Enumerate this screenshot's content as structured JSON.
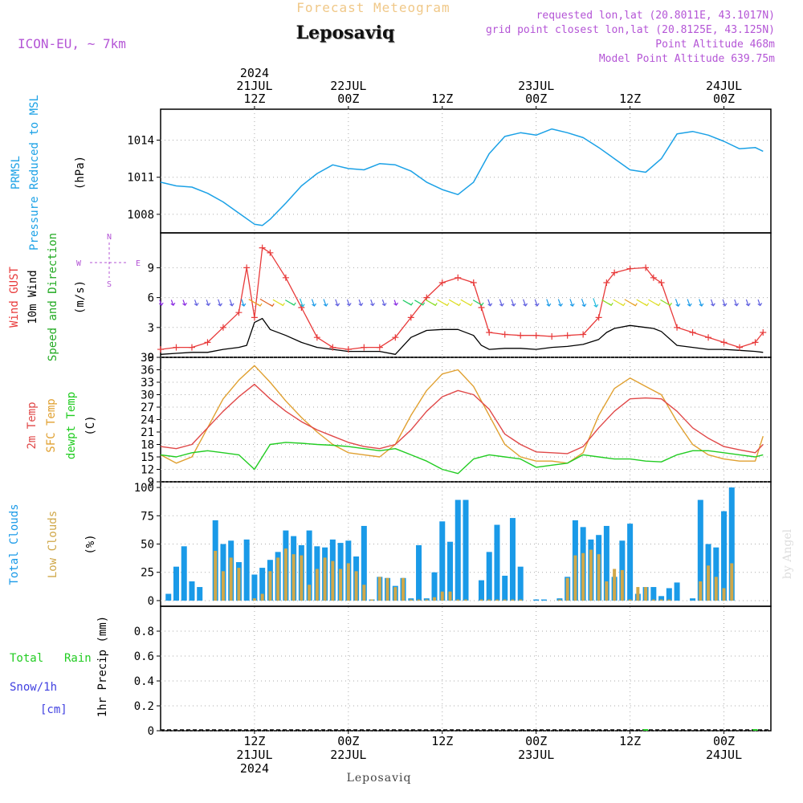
{
  "header": {
    "top_title": "Forecast Meteogram",
    "location": "Leposaviq",
    "model": "ICON-EU, ~ 7km",
    "requested": "requested lon,lat (20.8011E, 43.1017N)",
    "gridpoint": "grid point closest lon,lat (20.8125E, 43.125N)",
    "point_alt": "Point Altitude 468m",
    "model_alt": "Model Point Altitude 639.75m",
    "footer": "Leposaviq",
    "watermark": "by Angel"
  },
  "time_axis": {
    "start_hour": 0,
    "end_hour": 78,
    "ticks": [
      {
        "h": 12,
        "top": [
          "2024",
          "21JUL",
          "12Z"
        ],
        "bottom": [
          "12Z",
          "21JUL",
          "2024"
        ]
      },
      {
        "h": 24,
        "top": [
          "22JUL",
          "00Z"
        ],
        "bottom": [
          "00Z",
          "22JUL"
        ]
      },
      {
        "h": 36,
        "top": [
          "12Z"
        ],
        "bottom": [
          "12Z"
        ]
      },
      {
        "h": 48,
        "top": [
          "23JUL",
          "00Z"
        ],
        "bottom": [
          "00Z",
          "23JUL"
        ]
      },
      {
        "h": 60,
        "top": [
          "12Z"
        ],
        "bottom": [
          "12Z"
        ]
      },
      {
        "h": 72,
        "top": [
          "24JUL",
          "00Z"
        ],
        "bottom": [
          "00Z",
          "24JUL"
        ]
      }
    ]
  },
  "colors": {
    "pressure": "#1ba1e6",
    "gust": "#e83a3a",
    "wind": "#000000",
    "temp": "#e04848",
    "sfc": "#e0a030",
    "dew": "#22cc22",
    "total_clouds": "#1a9ae8",
    "low_clouds": "#d0a84a",
    "rain": "#22cc22",
    "snow": "#4040e0",
    "purple": "#b455d6",
    "title_orange": "#f0c888"
  },
  "panels": {
    "pressure": {
      "labels": [
        "PRMSL",
        "Pressure Reduced to MSL"
      ],
      "unit": "(hPa)"
    },
    "wind": {
      "labels": [
        "Wind GUST",
        "10m Wind",
        "Speed and Direction"
      ],
      "unit": "(m/s)",
      "compass": {
        "n": "N",
        "s": "S",
        "e": "E",
        "w": "W"
      }
    },
    "temp": {
      "labels": [
        "2m Temp",
        "SFC Temp",
        "dewpt Temp"
      ],
      "unit": "(C)"
    },
    "clouds": {
      "labels": [
        "Total Clouds",
        "Low Clouds"
      ],
      "unit": "(%)"
    },
    "precip": {
      "labels": [
        "Total",
        "Rain",
        "Snow/1h",
        "[cm]"
      ],
      "axis_label": "1hr Precip (mm)"
    }
  },
  "chart_data": [
    {
      "type": "line",
      "name": "PRMSL",
      "ylim": [
        1006.5,
        1016.5
      ],
      "yticks": [
        1008,
        1011,
        1014
      ],
      "x": [
        0,
        2,
        4,
        6,
        8,
        10,
        12,
        13,
        14,
        16,
        18,
        20,
        22,
        24,
        26,
        28,
        30,
        32,
        34,
        36,
        38,
        40,
        42,
        44,
        46,
        48,
        50,
        52,
        54,
        56,
        58,
        60,
        62,
        64,
        66,
        68,
        70,
        72,
        74,
        76,
        77
      ],
      "y": [
        1010.6,
        1010.3,
        1010.2,
        1009.7,
        1009.0,
        1008.1,
        1007.2,
        1007.1,
        1007.6,
        1008.9,
        1010.3,
        1011.3,
        1012.0,
        1011.7,
        1011.6,
        1012.1,
        1012.0,
        1011.5,
        1010.6,
        1010.0,
        1009.6,
        1010.6,
        1012.9,
        1014.3,
        1014.6,
        1014.4,
        1014.9,
        1014.6,
        1014.2,
        1013.4,
        1012.5,
        1011.6,
        1011.4,
        1012.5,
        1014.5,
        1014.7,
        1014.4,
        1013.9,
        1013.3,
        1013.4,
        1013.1
      ]
    },
    {
      "type": "line",
      "name": "wind",
      "ylim": [
        0,
        12.5
      ],
      "yticks": [
        0,
        3,
        6,
        9
      ],
      "x": [
        0,
        2,
        4,
        6,
        8,
        10,
        11,
        12,
        13,
        14,
        16,
        18,
        20,
        22,
        24,
        26,
        28,
        30,
        32,
        34,
        36,
        38,
        40,
        41,
        42,
        44,
        46,
        48,
        50,
        52,
        54,
        56,
        57,
        58,
        60,
        62,
        63,
        64,
        66,
        68,
        70,
        72,
        74,
        76,
        77
      ],
      "gust": [
        0.8,
        1.0,
        1.0,
        1.5,
        3.0,
        4.5,
        9.0,
        4.0,
        11.0,
        10.5,
        8.0,
        5.0,
        2.0,
        1.0,
        0.8,
        1.0,
        1.0,
        2.0,
        4.0,
        6.0,
        7.5,
        8.0,
        7.5,
        5.0,
        2.5,
        2.3,
        2.2,
        2.2,
        2.1,
        2.2,
        2.3,
        4.0,
        7.5,
        8.5,
        8.9,
        9.0,
        8.0,
        7.5,
        3.0,
        2.5,
        2.0,
        1.5,
        1.0,
        1.5,
        2.5
      ],
      "speed": [
        0.3,
        0.4,
        0.5,
        0.5,
        0.8,
        1.0,
        1.2,
        3.5,
        3.9,
        2.8,
        2.2,
        1.5,
        1.0,
        0.8,
        0.6,
        0.6,
        0.6,
        0.3,
        2.0,
        2.7,
        2.8,
        2.8,
        2.2,
        1.2,
        0.8,
        0.9,
        0.9,
        0.8,
        1.0,
        1.1,
        1.3,
        1.8,
        2.5,
        2.9,
        3.2,
        3.0,
        2.9,
        2.6,
        1.2,
        1.0,
        0.8,
        0.8,
        0.7,
        0.6,
        0.5
      ]
    },
    {
      "type": "line",
      "name": "temperature",
      "ylim": [
        9,
        39
      ],
      "yticks": [
        9,
        12,
        15,
        18,
        21,
        24,
        27,
        30,
        33,
        36,
        39
      ],
      "x": [
        0,
        2,
        4,
        6,
        8,
        10,
        12,
        14,
        16,
        18,
        20,
        22,
        24,
        26,
        28,
        30,
        32,
        34,
        36,
        38,
        40,
        42,
        44,
        46,
        48,
        50,
        52,
        54,
        56,
        58,
        60,
        62,
        64,
        66,
        68,
        70,
        72,
        74,
        76,
        77
      ],
      "t2m": [
        17.5,
        17.0,
        18.0,
        22.0,
        26.0,
        29.5,
        32.5,
        29.0,
        26.0,
        23.5,
        21.5,
        20.0,
        18.5,
        17.5,
        17.0,
        18.0,
        21.5,
        26.0,
        29.5,
        31.0,
        30.0,
        26.5,
        20.5,
        18.0,
        16.2,
        16.0,
        15.8,
        17.5,
        22.0,
        26.0,
        29.0,
        29.2,
        29.0,
        26.0,
        22.0,
        19.5,
        17.5,
        16.7,
        16.0,
        18.0
      ],
      "sfc": [
        15.5,
        13.5,
        15.0,
        22.0,
        29.0,
        33.5,
        37.0,
        33.0,
        28.5,
        24.5,
        21.0,
        18.0,
        16.0,
        15.5,
        15.0,
        18.0,
        25.0,
        31.0,
        35.0,
        36.0,
        32.0,
        25.0,
        18.0,
        15.0,
        14.0,
        14.0,
        13.5,
        16.0,
        25.0,
        31.5,
        34.0,
        32.0,
        30.0,
        23.5,
        18.0,
        15.5,
        14.5,
        14.0,
        14.0,
        20.0
      ],
      "dew": [
        15.5,
        15.0,
        16.0,
        16.5,
        16.0,
        15.5,
        12.0,
        18.0,
        18.5,
        18.3,
        18.0,
        17.8,
        17.5,
        17.0,
        16.5,
        17.0,
        15.5,
        14.0,
        12.0,
        11.0,
        14.5,
        15.5,
        15.0,
        14.5,
        12.5,
        13.0,
        13.5,
        15.5,
        15.0,
        14.5,
        14.5,
        14.0,
        13.8,
        15.5,
        16.5,
        16.5,
        16.0,
        15.5,
        15.0,
        15.5
      ]
    },
    {
      "type": "bar",
      "name": "clouds",
      "ylim": [
        -5,
        105
      ],
      "yticks": [
        0,
        25,
        50,
        75,
        100
      ],
      "x": [
        1,
        2,
        3,
        4,
        5,
        6,
        7,
        8,
        9,
        10,
        11,
        12,
        13,
        14,
        15,
        16,
        17,
        18,
        19,
        20,
        21,
        22,
        23,
        24,
        25,
        26,
        27,
        28,
        29,
        30,
        31,
        32,
        33,
        34,
        35,
        36,
        37,
        38,
        39,
        40,
        41,
        42,
        43,
        44,
        45,
        46,
        47,
        48,
        49,
        50,
        51,
        52,
        53,
        54,
        55,
        56,
        57,
        58,
        59,
        60,
        61,
        62,
        63,
        64,
        65,
        66,
        67,
        68,
        69,
        70,
        71,
        72,
        73,
        74,
        75,
        76,
        77
      ],
      "total": [
        6,
        30,
        48,
        17,
        12,
        0,
        71,
        50,
        53,
        34,
        54,
        23,
        29,
        36,
        43,
        62,
        57,
        49,
        62,
        48,
        47,
        54,
        51,
        53,
        39,
        66,
        1,
        21,
        20,
        13,
        20,
        2,
        49,
        2,
        25,
        70,
        52,
        89,
        89,
        0,
        18,
        43,
        67,
        22,
        73,
        30,
        0,
        1,
        1,
        0,
        2,
        21,
        71,
        65,
        54,
        58,
        66,
        21,
        53,
        68,
        6,
        12,
        12,
        4,
        11,
        16,
        0,
        2,
        89,
        50,
        47,
        79,
        100,
        0,
        0,
        0,
        0
      ],
      "low": [
        0,
        0,
        0,
        0,
        0,
        0,
        44,
        26,
        38,
        29,
        0,
        2,
        6,
        26,
        38,
        46,
        41,
        40,
        14,
        28,
        38,
        35,
        28,
        33,
        26,
        14,
        1,
        21,
        20,
        12,
        20,
        1,
        1,
        1,
        3,
        8,
        8,
        1,
        1,
        0,
        1,
        1,
        1,
        1,
        1,
        1,
        0,
        0,
        0,
        0,
        1,
        20,
        40,
        42,
        45,
        41,
        17,
        28,
        27,
        1,
        12,
        12,
        1,
        1,
        1,
        0,
        0,
        0,
        17,
        31,
        21,
        11,
        33,
        0,
        0,
        0,
        0
      ]
    },
    {
      "type": "bar",
      "name": "precip",
      "ylim": [
        0,
        1.0
      ],
      "yticks": [
        0,
        0.2,
        0.4,
        0.6,
        0.8
      ],
      "ytick_labels": [
        "0",
        "0.2",
        "0.4",
        "0.6",
        "0.8"
      ],
      "x": [
        0,
        57,
        62,
        76
      ],
      "rain": [
        0.0,
        0.0,
        0.01,
        0.01
      ]
    }
  ]
}
